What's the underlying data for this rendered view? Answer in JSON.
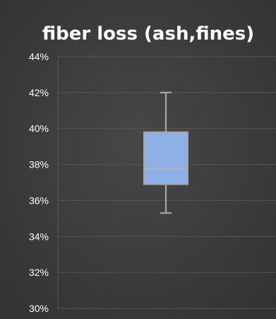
{
  "chart_data": {
    "type": "box",
    "title": "fiber loss (ash,fines)",
    "xlabel": "",
    "ylabel": "",
    "ylim": [
      0.3,
      0.44
    ],
    "ytick_values": [
      0.3,
      0.32,
      0.34,
      0.36,
      0.38,
      0.4,
      0.42,
      0.44
    ],
    "ytick_labels": [
      "30%",
      "32%",
      "34%",
      "36%",
      "38%",
      "40%",
      "42%",
      "44%"
    ],
    "grid": true,
    "box": {
      "min": 0.353,
      "q1": 0.369,
      "median": 0.3775,
      "q3": 0.398,
      "max": 0.42
    },
    "colors": {
      "background": "#3f3f3f",
      "box_fill": "#8fb0e6",
      "box_edge": "#a6a6a6",
      "median": "#b9b4a4",
      "grid": "#545454",
      "text": "#ffffff"
    }
  }
}
